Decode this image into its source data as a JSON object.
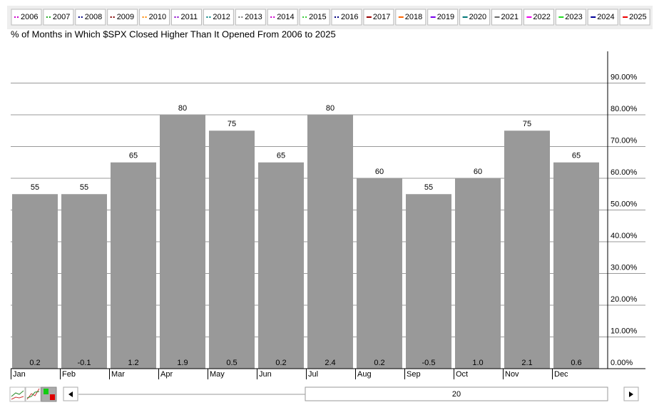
{
  "chart_data": {
    "type": "bar",
    "title": "% of Months in Which $SPX Closed Higher Than It Opened From 2006 to 2025",
    "legend": [
      {
        "name": "2006",
        "color": "#cc00cc",
        "dash": true
      },
      {
        "name": "2007",
        "color": "#22aa22",
        "dash": true
      },
      {
        "name": "2008",
        "color": "#000080",
        "dash": true
      },
      {
        "name": "2009",
        "color": "#800000",
        "dash": true
      },
      {
        "name": "2010",
        "color": "#ff8800",
        "dash": true
      },
      {
        "name": "2011",
        "color": "#8800cc",
        "dash": true
      },
      {
        "name": "2012",
        "color": "#008080",
        "dash": true
      },
      {
        "name": "2013",
        "color": "#777777",
        "dash": true
      },
      {
        "name": "2014",
        "color": "#cc00cc",
        "dash": true
      },
      {
        "name": "2015",
        "color": "#33cc33",
        "dash": true
      },
      {
        "name": "2016",
        "color": "#000080",
        "dash": true
      },
      {
        "name": "2017",
        "color": "#990000",
        "dash": false
      },
      {
        "name": "2018",
        "color": "#ff6600",
        "dash": false
      },
      {
        "name": "2019",
        "color": "#7700ee",
        "dash": false
      },
      {
        "name": "2020",
        "color": "#007777",
        "dash": false
      },
      {
        "name": "2021",
        "color": "#666666",
        "dash": false
      },
      {
        "name": "2022",
        "color": "#ee00ee",
        "dash": false
      },
      {
        "name": "2023",
        "color": "#22dd22",
        "dash": false
      },
      {
        "name": "2024",
        "color": "#000099",
        "dash": false
      },
      {
        "name": "2025",
        "color": "#ee0000",
        "dash": false
      }
    ],
    "categories": [
      "Jan",
      "Feb",
      "Mar",
      "Apr",
      "May",
      "Jun",
      "Jul",
      "Aug",
      "Sep",
      "Oct",
      "Nov",
      "Dec"
    ],
    "values": [
      55,
      55,
      65,
      80,
      75,
      65,
      80,
      60,
      55,
      60,
      75,
      65
    ],
    "color": "#999999",
    "avg_changes": [
      0.2,
      -0.1,
      1.2,
      1.9,
      0.5,
      0.2,
      2.4,
      0.2,
      -0.5,
      1.0,
      2.1,
      0.6
    ],
    "avg_change_labels": [
      "0.2",
      "-0.1",
      "1.2",
      "1.9",
      "0.5",
      "0.2",
      "2.4",
      "0.2",
      "-0.5",
      "1.0",
      "2.1",
      "0.6"
    ],
    "ylim": [
      0,
      100
    ],
    "yticks": [
      {
        "value": 0,
        "label": "0.00%"
      },
      {
        "value": 10,
        "label": "10.00%"
      },
      {
        "value": 20,
        "label": "20.00%"
      },
      {
        "value": 30,
        "label": "30.00%"
      },
      {
        "value": 40,
        "label": "40.00%"
      },
      {
        "value": 50,
        "label": "50.00%"
      },
      {
        "value": 60,
        "label": "60.00%"
      },
      {
        "value": 70,
        "label": "70.00%"
      },
      {
        "value": 80,
        "label": "80.00%"
      },
      {
        "value": 90,
        "label": "90.00%"
      }
    ],
    "grid": true,
    "period_years": 20
  }
}
